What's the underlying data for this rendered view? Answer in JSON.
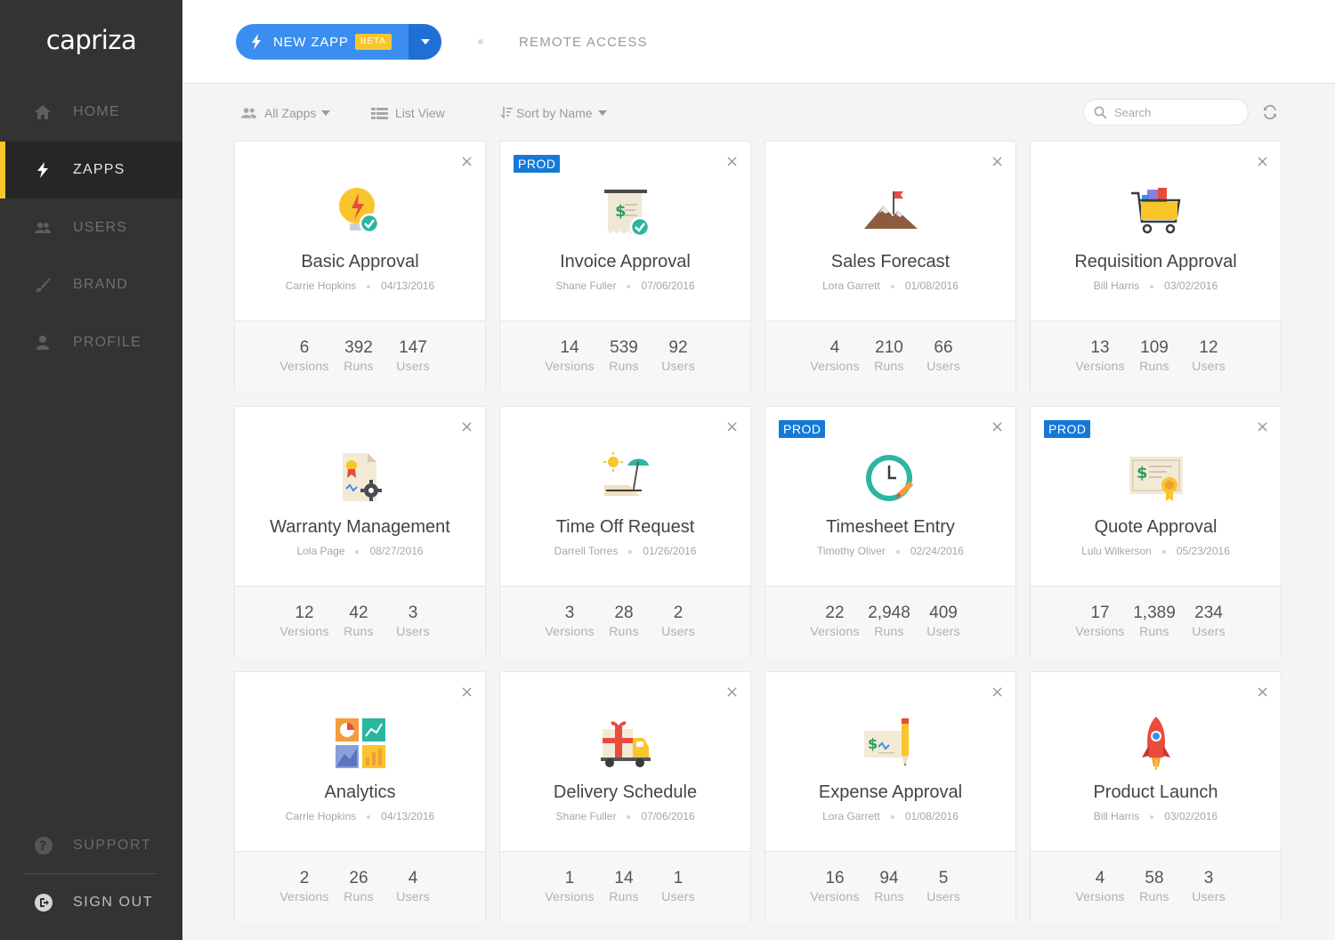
{
  "app": {
    "logo": "capriza"
  },
  "nav": [
    {
      "key": "home",
      "label": "HOME",
      "icon": "home-icon",
      "active": false
    },
    {
      "key": "zapps",
      "label": "ZAPPS",
      "icon": "bolt-icon",
      "active": true
    },
    {
      "key": "users",
      "label": "USERS",
      "icon": "users-icon",
      "active": false
    },
    {
      "key": "brand",
      "label": "BRAND",
      "icon": "brush-icon",
      "active": false
    },
    {
      "key": "profile",
      "label": "PROFILE",
      "icon": "person-icon",
      "active": false
    }
  ],
  "sidebar_bottom": {
    "support": "SUPPORT",
    "signout": "SIGN OUT"
  },
  "header": {
    "new_zapp": "NEW ZAPP",
    "beta": "BETA",
    "remote_access": "REMOTE ACCESS"
  },
  "toolbar": {
    "filter": "All Zapps",
    "view": "List View",
    "sort": "Sort by Name",
    "search_placeholder": "Search"
  },
  "stat_labels": {
    "versions": "Versions",
    "runs": "Runs",
    "users": "Users"
  },
  "prod_label": "PROD",
  "cards": [
    {
      "title": "Basic Approval",
      "author": "Carrie Hopkins",
      "date": "04/13/2016",
      "versions": "6",
      "runs": "392",
      "users": "147",
      "prod": false,
      "icon": "lightbulb-approval-icon"
    },
    {
      "title": "Invoice Approval",
      "author": "Shane Fuller",
      "date": "07/06/2016",
      "versions": "14",
      "runs": "539",
      "users": "92",
      "prod": true,
      "icon": "invoice-icon"
    },
    {
      "title": "Sales Forecast",
      "author": "Lora Garrett",
      "date": "01/08/2016",
      "versions": "4",
      "runs": "210",
      "users": "66",
      "prod": false,
      "icon": "mountain-flag-icon"
    },
    {
      "title": "Requisition Approval",
      "author": "Bill Harris",
      "date": "03/02/2016",
      "versions": "13",
      "runs": "109",
      "users": "12",
      "prod": false,
      "icon": "shopping-cart-icon"
    },
    {
      "title": "Warranty Management",
      "author": "Lola Page",
      "date": "08/27/2016",
      "versions": "12",
      "runs": "42",
      "users": "3",
      "prod": false,
      "icon": "certificate-gear-icon"
    },
    {
      "title": "Time Off Request",
      "author": "Darrell Torres",
      "date": "01/26/2016",
      "versions": "3",
      "runs": "28",
      "users": "2",
      "prod": false,
      "icon": "beach-chair-icon"
    },
    {
      "title": "Timesheet Entry",
      "author": "Timothy Oliver",
      "date": "02/24/2016",
      "versions": "22",
      "runs": "2,948",
      "users": "409",
      "prod": true,
      "icon": "clock-icon"
    },
    {
      "title": "Quote Approval",
      "author": "Lulu Wilkerson",
      "date": "05/23/2016",
      "versions": "17",
      "runs": "1,389",
      "users": "234",
      "prod": true,
      "icon": "quote-badge-icon"
    },
    {
      "title": "Analytics",
      "author": "Carrie Hopkins",
      "date": "04/13/2016",
      "versions": "2",
      "runs": "26",
      "users": "4",
      "prod": false,
      "icon": "analytics-icon"
    },
    {
      "title": "Delivery Schedule",
      "author": "Shane Fuller",
      "date": "07/06/2016",
      "versions": "1",
      "runs": "14",
      "users": "1",
      "prod": false,
      "icon": "delivery-truck-icon"
    },
    {
      "title": "Expense Approval",
      "author": "Lora Garrett",
      "date": "01/08/2016",
      "versions": "16",
      "runs": "94",
      "users": "5",
      "prod": false,
      "icon": "check-pencil-icon"
    },
    {
      "title": "Product Launch",
      "author": "Bill Harris",
      "date": "03/02/2016",
      "versions": "4",
      "runs": "58",
      "users": "3",
      "prod": false,
      "icon": "rocket-icon"
    }
  ]
}
